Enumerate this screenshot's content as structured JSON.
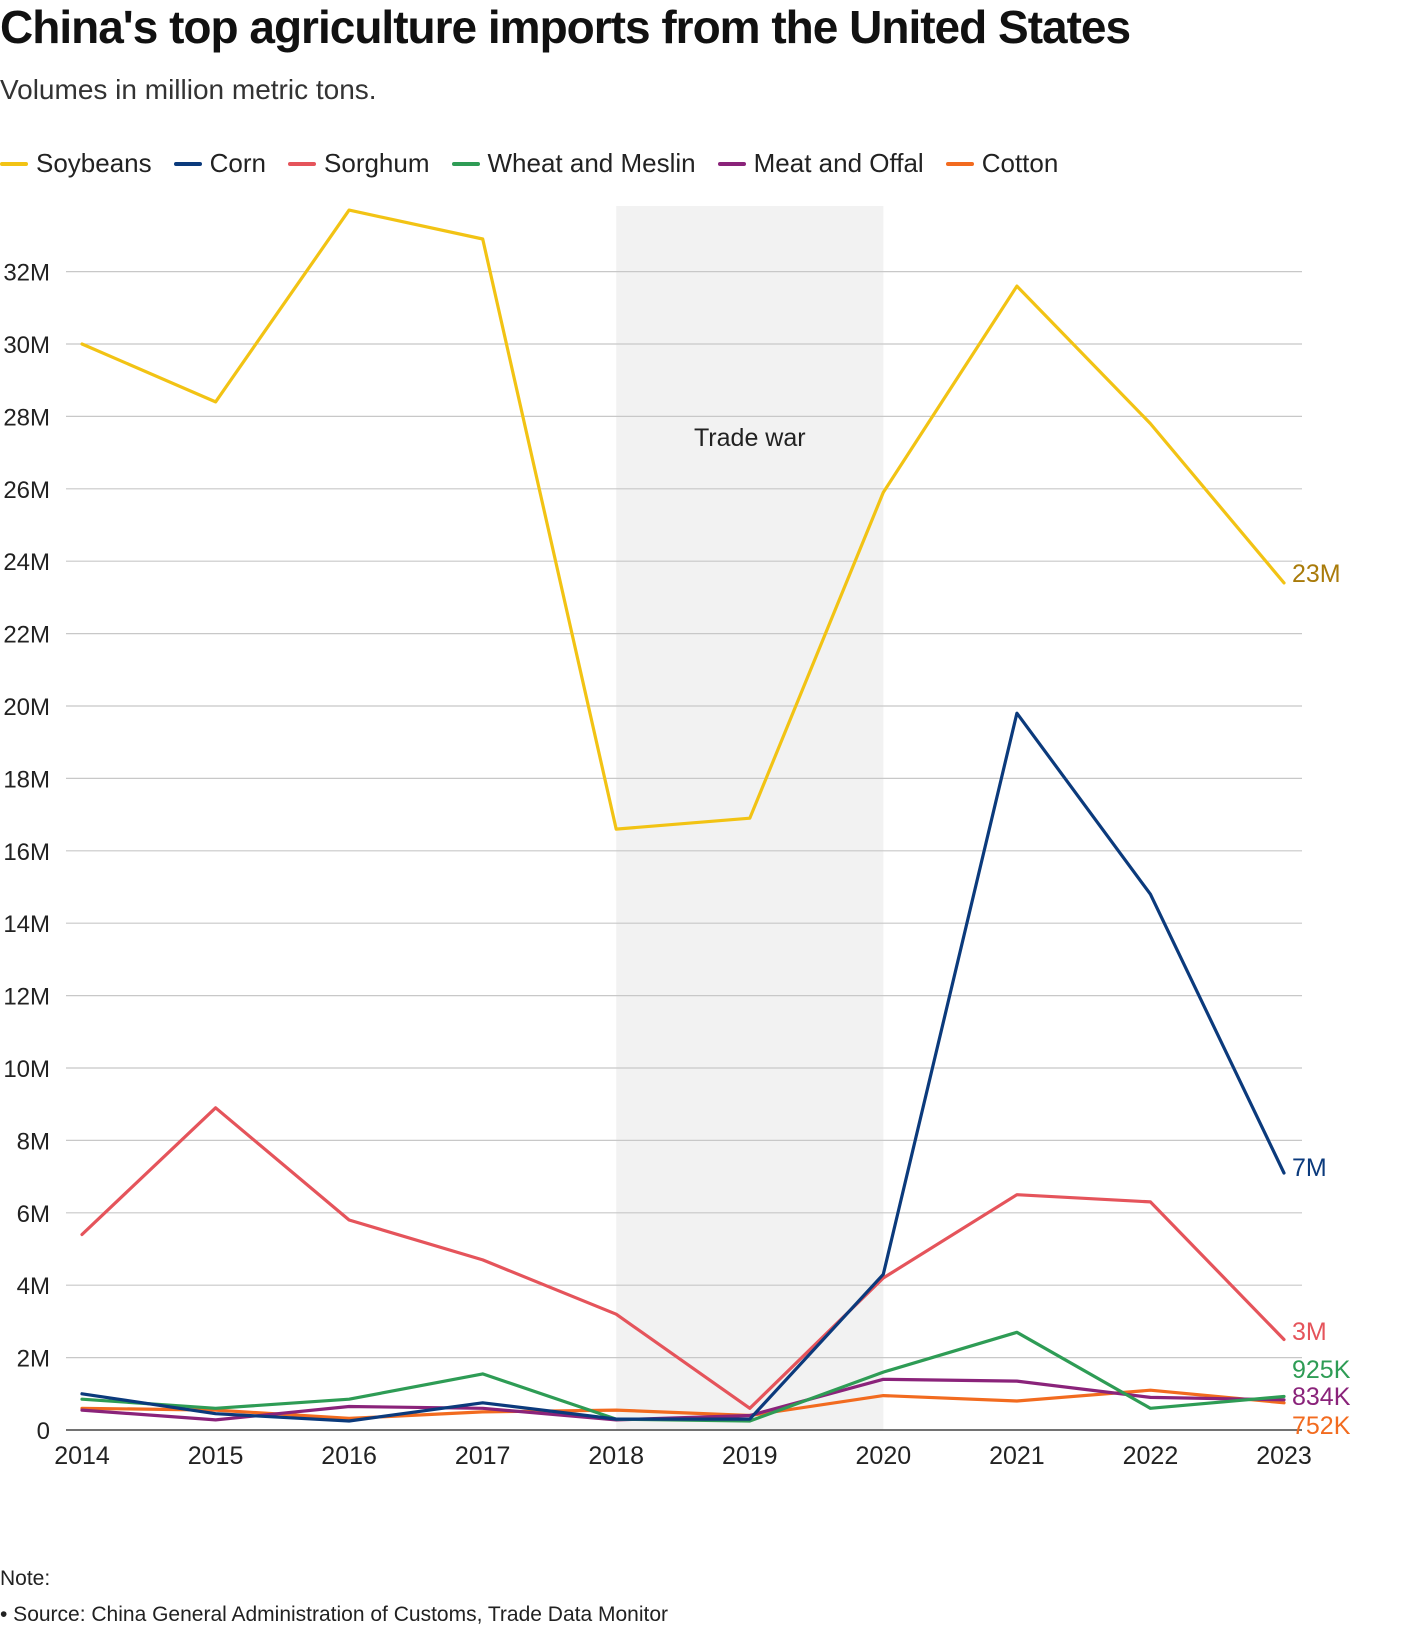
{
  "title": "China's top agriculture imports from the United States",
  "subtitle": "Volumes in million metric tons.",
  "note": "Note:",
  "source": "• Source: China General Administration of Customs, Trade Data Monitor",
  "chart_data": {
    "type": "line",
    "title": "China's top agriculture imports from the United States",
    "subtitle": "Volumes in million metric tons.",
    "x": [
      "2014",
      "2015",
      "2016",
      "2017",
      "2018",
      "2019",
      "2020",
      "2021",
      "2022",
      "2023"
    ],
    "ylim": [
      0,
      34
    ],
    "y_ticks": [
      0,
      2,
      4,
      6,
      8,
      10,
      12,
      14,
      16,
      18,
      20,
      22,
      24,
      26,
      28,
      30,
      32
    ],
    "y_tick_labels": [
      "0",
      "2M",
      "4M",
      "6M",
      "8M",
      "10M",
      "12M",
      "14M",
      "16M",
      "18M",
      "20M",
      "22M",
      "24M",
      "26M",
      "28M",
      "30M",
      "32M"
    ],
    "grid": true,
    "legend_position": "top",
    "annotation": {
      "label": "Trade war",
      "x_start": "2018",
      "x_end": "2020",
      "color": "#f2f2f2"
    },
    "series": [
      {
        "name": "Soybeans",
        "color": "#f2c314",
        "label_color": "#a97b0a",
        "end_label": "23M",
        "values": [
          30.0,
          28.4,
          33.7,
          32.9,
          16.6,
          16.9,
          25.9,
          31.6,
          27.8,
          23.4
        ]
      },
      {
        "name": "Corn",
        "color": "#0b3a7c",
        "label_color": "#0b3a7c",
        "end_label": "7M",
        "values": [
          1.0,
          0.45,
          0.25,
          0.75,
          0.3,
          0.3,
          4.3,
          19.8,
          14.8,
          7.1
        ]
      },
      {
        "name": "Sorghum",
        "color": "#e5545b",
        "label_color": "#e5545b",
        "end_label": "3M",
        "values": [
          5.4,
          8.9,
          5.8,
          4.7,
          3.2,
          0.6,
          4.2,
          6.5,
          6.3,
          2.5
        ]
      },
      {
        "name": "Wheat and Meslin",
        "color": "#2e9c55",
        "label_color": "#2e9c55",
        "end_label": "925K",
        "values": [
          0.85,
          0.6,
          0.85,
          1.55,
          0.3,
          0.25,
          1.6,
          2.7,
          0.6,
          0.925
        ]
      },
      {
        "name": "Meat and Offal",
        "color": "#8a237a",
        "label_color": "#8a237a",
        "end_label": "834K",
        "values": [
          0.55,
          0.28,
          0.65,
          0.6,
          0.28,
          0.4,
          1.4,
          1.35,
          0.9,
          0.834
        ]
      },
      {
        "name": "Cotton",
        "color": "#f26b1f",
        "label_color": "#f26b1f",
        "end_label": "752K",
        "values": [
          0.6,
          0.55,
          0.32,
          0.5,
          0.55,
          0.4,
          0.95,
          0.8,
          1.1,
          0.752
        ]
      }
    ]
  }
}
